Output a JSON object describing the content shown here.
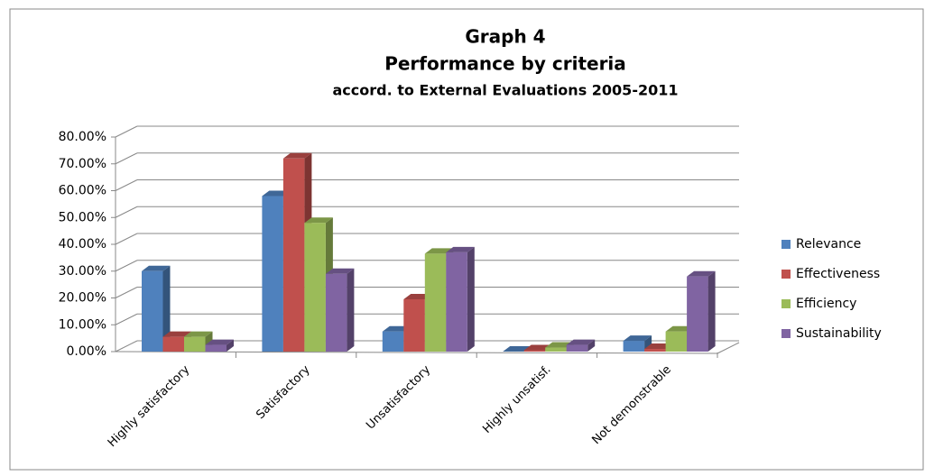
{
  "chart_data": {
    "type": "bar3d",
    "title": "Graph 4",
    "subtitle": "Performance by criteria",
    "subtitle2": "accord. to External Evaluations 2005-2011",
    "categories": [
      "Highly satisfactory",
      "Satisfactory",
      "Unsatisfactory",
      "Highly unsatisf.",
      "Not demonstrable"
    ],
    "series": [
      {
        "name": "Relevance",
        "color": "#4f81bd",
        "values": [
          30,
          58,
          7.5,
          0,
          4
        ]
      },
      {
        "name": "Effectiveness",
        "color": "#c0504d",
        "values": [
          5.5,
          72,
          19.5,
          0.5,
          1
        ]
      },
      {
        "name": "Efficiency",
        "color": "#9bbb59",
        "values": [
          5.5,
          48,
          36.5,
          1.5,
          7.5
        ]
      },
      {
        "name": "Sustainability",
        "color": "#8064a2",
        "values": [
          2.5,
          29,
          37,
          2.5,
          28
        ]
      }
    ],
    "ylim": [
      0,
      80
    ],
    "yticks": [
      {
        "value": 0,
        "label": "0.00%"
      },
      {
        "value": 10,
        "label": "10.00%"
      },
      {
        "value": 20,
        "label": "20.00%"
      },
      {
        "value": 30,
        "label": "30.00%"
      },
      {
        "value": 40,
        "label": "40.00%"
      },
      {
        "value": 50,
        "label": "50.00%"
      },
      {
        "value": 60,
        "label": "60.00%"
      },
      {
        "value": 70,
        "label": "70.00%"
      },
      {
        "value": 80,
        "label": "80.00%"
      }
    ],
    "grid": true,
    "legend": "right"
  }
}
